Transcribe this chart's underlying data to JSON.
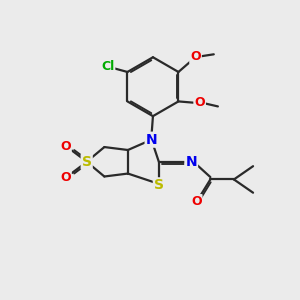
{
  "bg_color": "#ebebeb",
  "bond_color": "#2a2a2a",
  "bond_width": 1.6,
  "dbo": 0.06,
  "atom_colors": {
    "S": "#bbbb00",
    "N": "#0000ee",
    "O": "#ee0000",
    "Cl": "#00aa00",
    "C": "#2a2a2a"
  },
  "fs": 9.5
}
